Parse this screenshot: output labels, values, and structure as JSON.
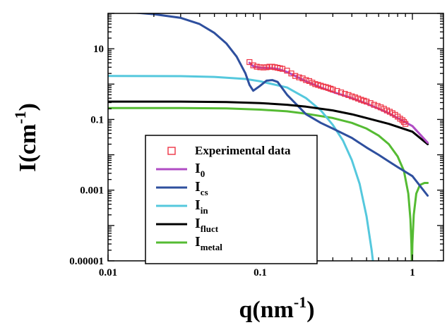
{
  "chart_data": {
    "type": "line",
    "title": "",
    "xlabel": {
      "main": "q(nm",
      "sup": "-1",
      "close": ")"
    },
    "ylabel": {
      "main": "I(cm",
      "sup": "-1",
      "close": ")"
    },
    "xscale": "log",
    "yscale": "log",
    "xlim": [
      0.01,
      1.6
    ],
    "ylim": [
      1e-05,
      100
    ],
    "x_ticks": [
      {
        "value": 0.01,
        "label": "0.01"
      },
      {
        "value": 0.1,
        "label": "0.1"
      },
      {
        "value": 1,
        "label": "1"
      }
    ],
    "y_ticks": [
      {
        "value": 1e-05,
        "label": "0.00001"
      },
      {
        "value": 0.001,
        "label": "0.001"
      },
      {
        "value": 0.1,
        "label": "0.1"
      },
      {
        "value": 10,
        "label": "10"
      }
    ],
    "grid": false,
    "legend_position": "lower-left",
    "legend": [
      {
        "key": "exp",
        "main": "Experimental data",
        "sub": "",
        "marker": "square",
        "color": "#ee3344"
      },
      {
        "key": "I0",
        "main": "I",
        "sub": "0",
        "marker": "line",
        "color": "#b04cc4"
      },
      {
        "key": "Ics",
        "main": "I",
        "sub": "cs",
        "marker": "line",
        "color": "#2e4f9e"
      },
      {
        "key": "Iin",
        "main": "I",
        "sub": "in",
        "marker": "line",
        "color": "#55c8dd"
      },
      {
        "key": "Ifluct",
        "main": "I",
        "sub": "fluct",
        "marker": "line",
        "color": "#000000"
      },
      {
        "key": "Imetal",
        "main": "I",
        "sub": "metal",
        "marker": "line",
        "color": "#55bb33"
      }
    ],
    "series": [
      {
        "key": "Imetal",
        "color": "#55bb33",
        "points": [
          [
            0.01,
            0.21
          ],
          [
            0.03,
            0.21
          ],
          [
            0.06,
            0.205
          ],
          [
            0.1,
            0.19
          ],
          [
            0.15,
            0.17
          ],
          [
            0.2,
            0.145
          ],
          [
            0.3,
            0.11
          ],
          [
            0.4,
            0.08
          ],
          [
            0.5,
            0.055
          ],
          [
            0.6,
            0.035
          ],
          [
            0.7,
            0.02
          ],
          [
            0.8,
            0.009
          ],
          [
            0.88,
            0.0035
          ],
          [
            0.94,
            0.0008
          ],
          [
            0.97,
            0.00015
          ],
          [
            0.985,
            3e-05
          ],
          [
            0.99,
            1e-05
          ],
          [
            0.995,
            1e-05
          ],
          [
            1.0,
            3e-05
          ],
          [
            1.02,
            0.0002
          ],
          [
            1.06,
            0.0008
          ],
          [
            1.12,
            0.0014
          ],
          [
            1.2,
            0.0016
          ],
          [
            1.26,
            0.0016
          ]
        ]
      },
      {
        "key": "Iin",
        "color": "#55c8dd",
        "points": [
          [
            0.01,
            1.7
          ],
          [
            0.03,
            1.68
          ],
          [
            0.05,
            1.6
          ],
          [
            0.08,
            1.4
          ],
          [
            0.1,
            1.2
          ],
          [
            0.15,
            0.8
          ],
          [
            0.2,
            0.4
          ],
          [
            0.25,
            0.18
          ],
          [
            0.3,
            0.07
          ],
          [
            0.35,
            0.025
          ],
          [
            0.4,
            0.007
          ],
          [
            0.45,
            0.0015
          ],
          [
            0.5,
            0.00018
          ],
          [
            0.54,
            2e-05
          ],
          [
            0.55,
            1e-05
          ]
        ]
      },
      {
        "key": "Ics",
        "color": "#2e4f9e",
        "points": [
          [
            0.01,
            110
          ],
          [
            0.015,
            105
          ],
          [
            0.02,
            95
          ],
          [
            0.03,
            75
          ],
          [
            0.04,
            50
          ],
          [
            0.05,
            28
          ],
          [
            0.06,
            14
          ],
          [
            0.07,
            6
          ],
          [
            0.08,
            2
          ],
          [
            0.085,
            0.95
          ],
          [
            0.09,
            0.65
          ],
          [
            0.1,
            0.9
          ],
          [
            0.11,
            1.25
          ],
          [
            0.12,
            1.3
          ],
          [
            0.13,
            1.15
          ],
          [
            0.15,
            0.5
          ],
          [
            0.2,
            0.14
          ],
          [
            0.25,
            0.08
          ],
          [
            0.3,
            0.055
          ],
          [
            0.4,
            0.03
          ],
          [
            0.5,
            0.016
          ],
          [
            0.6,
            0.01
          ],
          [
            0.7,
            0.0065
          ],
          [
            0.8,
            0.0045
          ],
          [
            1.0,
            0.0025
          ],
          [
            1.26,
            0.0007
          ]
        ]
      },
      {
        "key": "Ifluct",
        "color": "#000000",
        "points": [
          [
            0.01,
            0.32
          ],
          [
            0.03,
            0.32
          ],
          [
            0.06,
            0.31
          ],
          [
            0.1,
            0.29
          ],
          [
            0.15,
            0.26
          ],
          [
            0.2,
            0.23
          ],
          [
            0.3,
            0.18
          ],
          [
            0.4,
            0.14
          ],
          [
            0.5,
            0.11
          ],
          [
            0.7,
            0.075
          ],
          [
            1.0,
            0.045
          ],
          [
            1.26,
            0.02
          ]
        ]
      },
      {
        "key": "I0",
        "color": "#b04cc4",
        "points": [
          [
            0.085,
            4
          ],
          [
            0.09,
            3.2
          ],
          [
            0.1,
            2.9
          ],
          [
            0.11,
            2.85
          ],
          [
            0.12,
            2.8
          ],
          [
            0.13,
            2.7
          ],
          [
            0.15,
            2.2
          ],
          [
            0.2,
            1.2
          ],
          [
            0.25,
            0.8
          ],
          [
            0.3,
            0.6
          ],
          [
            0.4,
            0.4
          ],
          [
            0.5,
            0.28
          ],
          [
            0.6,
            0.2
          ],
          [
            0.7,
            0.15
          ],
          [
            0.8,
            0.11
          ],
          [
            1.0,
            0.065
          ],
          [
            1.26,
            0.022
          ]
        ]
      }
    ],
    "experimental": {
      "key": "exp",
      "color": "#ee3344",
      "points": [
        [
          0.085,
          4.2
        ],
        [
          0.09,
          3.4
        ],
        [
          0.095,
          3.1
        ],
        [
          0.1,
          3.0
        ],
        [
          0.105,
          2.95
        ],
        [
          0.11,
          3.0
        ],
        [
          0.115,
          3.1
        ],
        [
          0.12,
          3.1
        ],
        [
          0.125,
          3.0
        ],
        [
          0.13,
          2.9
        ],
        [
          0.135,
          2.8
        ],
        [
          0.14,
          2.7
        ],
        [
          0.15,
          2.4
        ],
        [
          0.16,
          2.0
        ],
        [
          0.17,
          1.7
        ],
        [
          0.18,
          1.55
        ],
        [
          0.19,
          1.45
        ],
        [
          0.2,
          1.3
        ],
        [
          0.21,
          1.22
        ],
        [
          0.22,
          1.1
        ],
        [
          0.23,
          1.0
        ],
        [
          0.24,
          0.95
        ],
        [
          0.25,
          0.9
        ],
        [
          0.26,
          0.85
        ],
        [
          0.27,
          0.82
        ],
        [
          0.28,
          0.78
        ],
        [
          0.29,
          0.74
        ],
        [
          0.3,
          0.7
        ],
        [
          0.32,
          0.64
        ],
        [
          0.34,
          0.58
        ],
        [
          0.36,
          0.53
        ],
        [
          0.38,
          0.49
        ],
        [
          0.4,
          0.45
        ],
        [
          0.42,
          0.42
        ],
        [
          0.44,
          0.39
        ],
        [
          0.46,
          0.36
        ],
        [
          0.48,
          0.34
        ],
        [
          0.5,
          0.32
        ],
        [
          0.53,
          0.29
        ],
        [
          0.56,
          0.26
        ],
        [
          0.59,
          0.24
        ],
        [
          0.62,
          0.22
        ],
        [
          0.65,
          0.2
        ],
        [
          0.68,
          0.18
        ],
        [
          0.71,
          0.165
        ],
        [
          0.74,
          0.15
        ],
        [
          0.77,
          0.135
        ],
        [
          0.8,
          0.12
        ],
        [
          0.83,
          0.105
        ],
        [
          0.86,
          0.095
        ],
        [
          0.88,
          0.085
        ],
        [
          0.9,
          0.075
        ]
      ]
    }
  }
}
